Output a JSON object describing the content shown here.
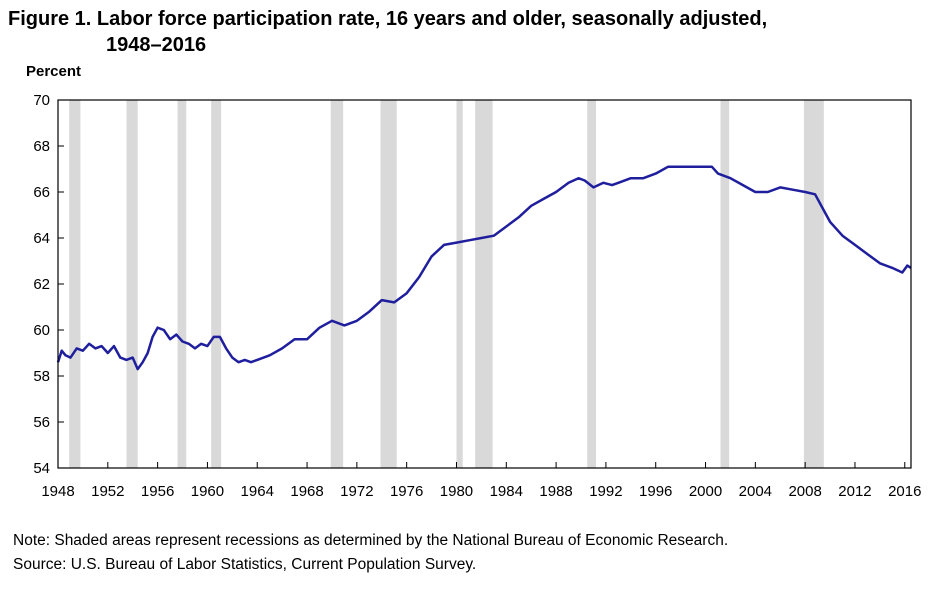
{
  "figure": {
    "title_line1": "Figure 1. Labor force participation rate, 16 years and older, seasonally adjusted,",
    "title_line2": "1948–2016",
    "note": "Note:  Shaded areas represent recessions as determined by the National Bureau of Economic Research.",
    "source": "Source: U.S. Bureau of Labor Statistics, Current Population Survey."
  },
  "colors": {
    "line": "#1f1f9e",
    "recession": "#d9d9d9",
    "axis": "#000000"
  },
  "chart_data": {
    "type": "line",
    "title": "Figure 1. Labor force participation rate, 16 years and older, seasonally adjusted, 1948–2016",
    "ylabel": "Percent",
    "xlabel": "",
    "xlim": [
      1948,
      2016.5
    ],
    "ylim": [
      54,
      70
    ],
    "grid": false,
    "legend": "none",
    "yticks": [
      54,
      56,
      58,
      60,
      62,
      64,
      66,
      68,
      70
    ],
    "xticks": [
      1948,
      1952,
      1956,
      1960,
      1964,
      1968,
      1972,
      1976,
      1980,
      1984,
      1988,
      1992,
      1996,
      2000,
      2004,
      2008,
      2012,
      2016
    ],
    "recessions": [
      [
        1948.9,
        1949.8
      ],
      [
        1953.5,
        1954.4
      ],
      [
        1957.6,
        1958.3
      ],
      [
        1960.3,
        1961.1
      ],
      [
        1969.9,
        1970.9
      ],
      [
        1973.9,
        1975.2
      ],
      [
        1980.0,
        1980.5
      ],
      [
        1981.5,
        1982.9
      ],
      [
        1990.5,
        1991.2
      ],
      [
        2001.2,
        2001.9
      ],
      [
        2007.9,
        2009.5
      ]
    ],
    "series": [
      {
        "x": [
          1948.0,
          1948.3,
          1948.6,
          1949.0,
          1949.5,
          1950.0,
          1950.5,
          1951.0,
          1951.5,
          1952.0,
          1952.5,
          1953.0,
          1953.5,
          1954.0,
          1954.4,
          1954.8,
          1955.2,
          1955.6,
          1956.0,
          1956.5,
          1957.0,
          1957.5,
          1958.0,
          1958.5,
          1959.0,
          1959.5,
          1960.0,
          1960.5,
          1961.0,
          1961.5,
          1962.0,
          1962.5,
          1963.0,
          1963.5,
          1964.0,
          1965.0,
          1966.0,
          1967.0,
          1968.0,
          1969.0,
          1970.0,
          1971.0,
          1972.0,
          1973.0,
          1974.0,
          1975.0,
          1976.0,
          1977.0,
          1978.0,
          1979.0,
          1980.0,
          1981.0,
          1982.0,
          1983.0,
          1984.0,
          1985.0,
          1986.0,
          1987.0,
          1988.0,
          1989.0,
          1989.8,
          1990.3,
          1991.0,
          1991.8,
          1992.5,
          1993.0,
          1994.0,
          1995.0,
          1996.0,
          1997.0,
          1998.0,
          1999.0,
          2000.0,
          2000.5,
          2001.0,
          2002.0,
          2003.0,
          2004.0,
          2005.0,
          2006.0,
          2007.0,
          2008.0,
          2008.8,
          2009.5,
          2010.0,
          2011.0,
          2012.0,
          2013.0,
          2014.0,
          2015.0,
          2015.8,
          2016.2,
          2016.5
        ],
        "values": [
          58.6,
          59.1,
          58.9,
          58.8,
          59.2,
          59.1,
          59.4,
          59.2,
          59.3,
          59.0,
          59.3,
          58.8,
          58.7,
          58.8,
          58.3,
          58.6,
          59.0,
          59.7,
          60.1,
          60.0,
          59.6,
          59.8,
          59.5,
          59.4,
          59.2,
          59.4,
          59.3,
          59.7,
          59.7,
          59.2,
          58.8,
          58.6,
          58.7,
          58.6,
          58.7,
          58.9,
          59.2,
          59.6,
          59.6,
          60.1,
          60.4,
          60.2,
          60.4,
          60.8,
          61.3,
          61.2,
          61.6,
          62.3,
          63.2,
          63.7,
          63.8,
          63.9,
          64.0,
          64.1,
          64.5,
          64.9,
          65.4,
          65.7,
          66.0,
          66.4,
          66.6,
          66.5,
          66.2,
          66.4,
          66.3,
          66.4,
          66.6,
          66.6,
          66.8,
          67.1,
          67.1,
          67.1,
          67.1,
          67.1,
          66.8,
          66.6,
          66.3,
          66.0,
          66.0,
          66.2,
          66.1,
          66.0,
          65.9,
          65.2,
          64.7,
          64.1,
          63.7,
          63.3,
          62.9,
          62.7,
          62.5,
          62.8,
          62.7
        ]
      }
    ]
  }
}
